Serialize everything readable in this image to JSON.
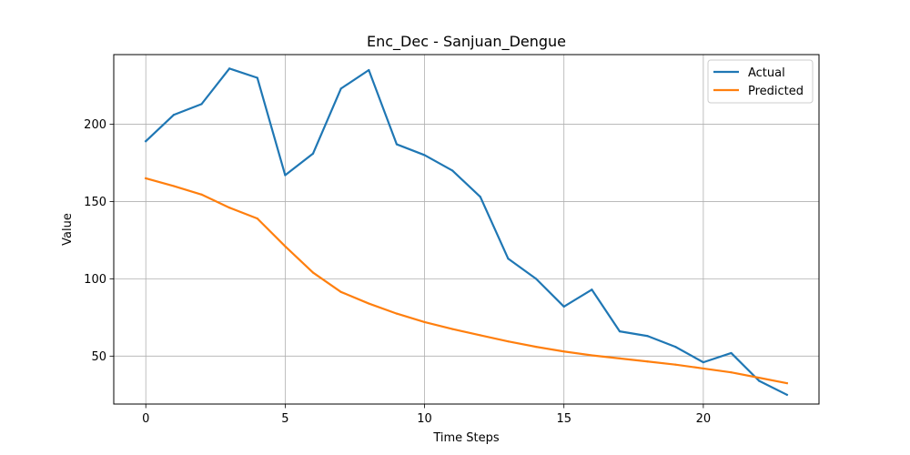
{
  "chart_data": {
    "type": "line",
    "title": "Enc_Dec - Sanjuan_Dengue",
    "xlabel": "Time Steps",
    "ylabel": "Value",
    "xlim": [
      -1.15,
      24.15
    ],
    "ylim": [
      19,
      245
    ],
    "xticks": [
      0,
      5,
      10,
      15,
      20
    ],
    "yticks": [
      50,
      100,
      150,
      200
    ],
    "grid": true,
    "legend_position": "top-right",
    "x": [
      0,
      1,
      2,
      3,
      4,
      5,
      6,
      7,
      8,
      9,
      10,
      11,
      12,
      13,
      14,
      15,
      16,
      17,
      18,
      19,
      20,
      21,
      22,
      23
    ],
    "series": [
      {
        "name": "Actual",
        "color": "#1f77b4",
        "values": [
          189,
          206,
          213,
          236,
          230,
          167,
          181,
          223,
          235,
          187,
          180,
          170,
          153,
          113,
          100,
          82,
          93,
          66,
          63,
          56,
          46,
          52,
          34,
          25
        ]
      },
      {
        "name": "Predicted",
        "color": "#ff7f0e",
        "values": [
          165,
          160,
          154.5,
          146,
          139,
          121,
          104,
          91.5,
          84,
          77.5,
          72,
          67.5,
          63.5,
          59.5,
          56,
          53,
          50.5,
          48.5,
          46.5,
          44.5,
          42,
          39.5,
          36,
          32.5
        ]
      }
    ]
  }
}
